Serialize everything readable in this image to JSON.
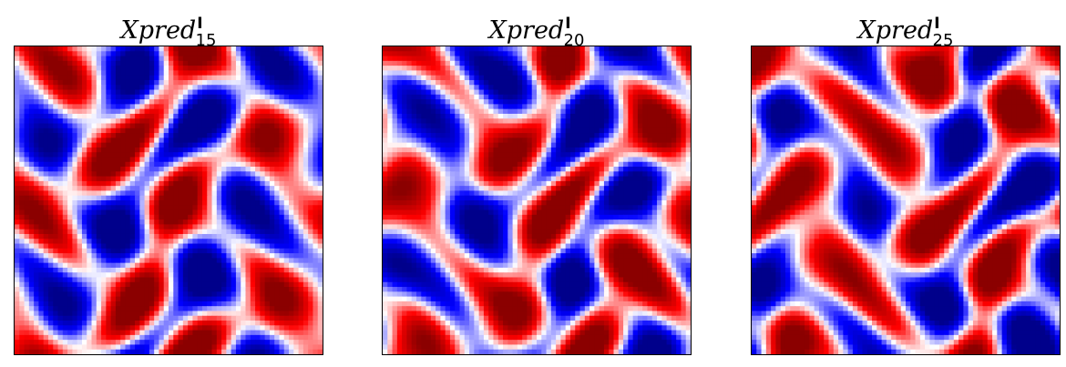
{
  "chart_data": [
    {
      "type": "heatmap",
      "title": {
        "base": "Xpred",
        "sup": "I",
        "sub": "15"
      },
      "colormap": "seismic",
      "colors": {
        "negative": "#00008b",
        "mid_negative": "#0000ff",
        "zero": "#ffffff",
        "mid_positive": "#ff0000",
        "positive": "#8b0000"
      },
      "grid_size": 64,
      "xticks": [],
      "yticks": [],
      "field": {
        "kx": 4,
        "ky": 4,
        "phase_x": 0.6,
        "phase_y": 1.1,
        "warp": 0.9,
        "seed": 1
      }
    },
    {
      "type": "heatmap",
      "title": {
        "base": "Xpred",
        "sup": "I",
        "sub": "20"
      },
      "colormap": "seismic",
      "colors": {
        "negative": "#00008b",
        "mid_negative": "#0000ff",
        "zero": "#ffffff",
        "mid_positive": "#ff0000",
        "positive": "#8b0000"
      },
      "grid_size": 64,
      "xticks": [],
      "yticks": [],
      "field": {
        "kx": 4,
        "ky": 4,
        "phase_x": 0.4,
        "phase_y": 1.3,
        "warp": 1.1,
        "seed": 2
      }
    },
    {
      "type": "heatmap",
      "title": {
        "base": "Xpred",
        "sup": "I",
        "sub": "25"
      },
      "colormap": "seismic",
      "colors": {
        "negative": "#00008b",
        "mid_negative": "#0000ff",
        "zero": "#ffffff",
        "mid_positive": "#ff0000",
        "positive": "#8b0000"
      },
      "grid_size": 64,
      "xticks": [],
      "yticks": [],
      "field": {
        "kx": 4,
        "ky": 4,
        "phase_x": 0.3,
        "phase_y": 1.4,
        "warp": 1.25,
        "seed": 3
      }
    }
  ]
}
